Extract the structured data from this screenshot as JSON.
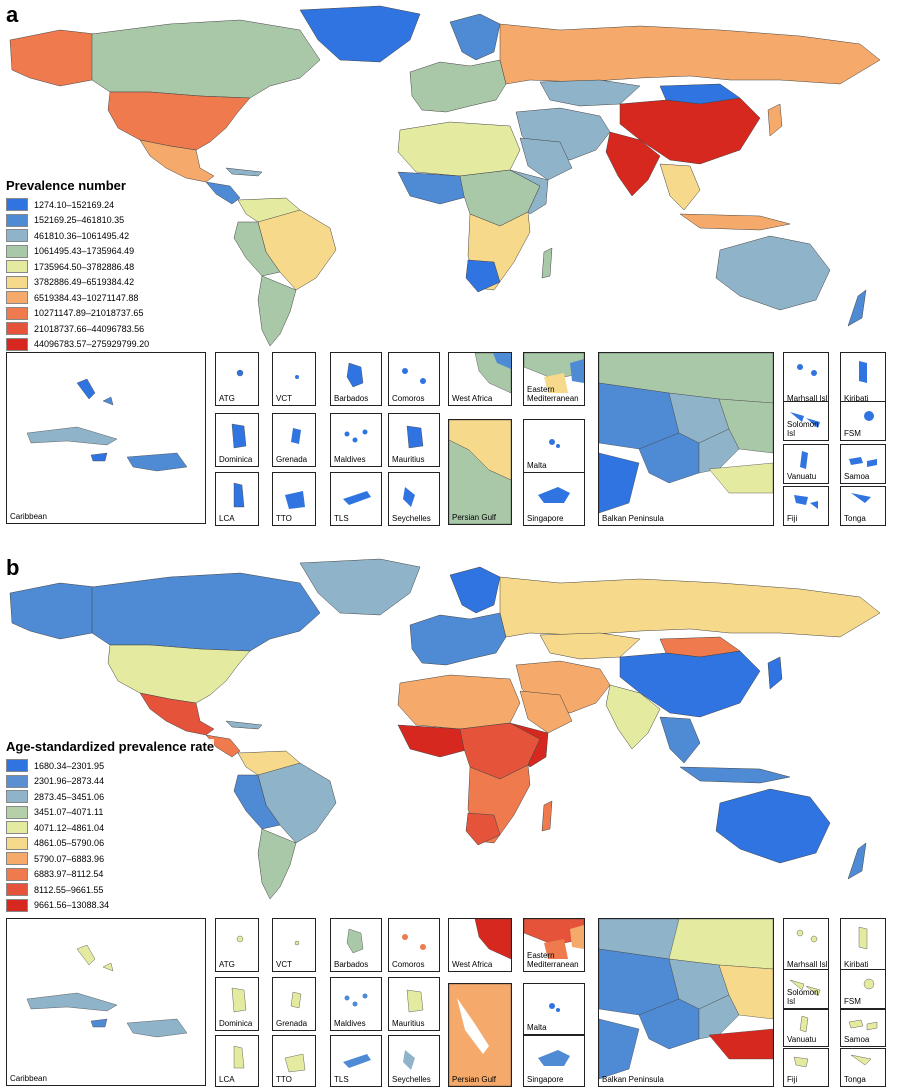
{
  "panel_a": {
    "letter": "a",
    "legend_title": "Prevalence number",
    "legend": [
      {
        "label": "1274.10–152169.24",
        "color": "#2f74e0"
      },
      {
        "label": "152169.25–461810.35",
        "color": "#4f8ad4"
      },
      {
        "label": "461810.36–1061495.42",
        "color": "#8fb3c9"
      },
      {
        "label": "1061495.43–1735964.49",
        "color": "#a9c8a8"
      },
      {
        "label": "1735964.50–3782886.48",
        "color": "#e4ea9f"
      },
      {
        "label": "3782886.49–6519384.42",
        "color": "#f6d98a"
      },
      {
        "label": "6519384.43–10271147.88",
        "color": "#f5a96a"
      },
      {
        "label": "10271147.89–21018737.65",
        "color": "#ee7a4e"
      },
      {
        "label": "21018737.66–44096783.56",
        "color": "#e5533a"
      },
      {
        "label": "44096783.57–275929799.20",
        "color": "#d7281f"
      }
    ],
    "insets": {
      "caribbean": "Caribbean",
      "atg": "ATG",
      "vct": "VCT",
      "barbados": "Barbados",
      "comoros": "Comoros",
      "dominica": "Dominica",
      "grenada": "Grenada",
      "maldives": "Maldives",
      "mauritius": "Mauritius",
      "lca": "LCA",
      "tto": "TTO",
      "tls": "TLS",
      "seychelles": "Seychelles",
      "west_africa": "West Africa",
      "eastern_med": "Eastern\nMediterranean",
      "persian_gulf": "Persian Gulf",
      "malta": "Malta",
      "singapore": "Singapore",
      "balkan": "Balkan Peninsula",
      "marshall": "Marhsall Isl",
      "kiribati": "Kiribati",
      "solomon": "Solomon Isl",
      "fsm": "FSM",
      "vanuatu": "Vanuatu",
      "samoa": "Samoa",
      "fiji": "Fiji",
      "tonga": "Tonga"
    }
  },
  "panel_b": {
    "letter": "b",
    "legend_title": "Age-standardized prevalence rate",
    "legend": [
      {
        "label": "1680.34–2301.95",
        "color": "#2f74e0"
      },
      {
        "label": "2301.96–2873.44",
        "color": "#5a8fd2"
      },
      {
        "label": "2873.45–3451.06",
        "color": "#8fb3c9"
      },
      {
        "label": "3451.07–4071.11",
        "color": "#b5cfa8"
      },
      {
        "label": "4071.12–4861.04",
        "color": "#e4ea9f"
      },
      {
        "label": "4861.05–5790.06",
        "color": "#f6d98a"
      },
      {
        "label": "5790.07–6883.96",
        "color": "#f5a96a"
      },
      {
        "label": "6883.97–8112.54",
        "color": "#ee7a4e"
      },
      {
        "label": "8112.55–9661.55",
        "color": "#e5533a"
      },
      {
        "label": "9661.56–13088.34",
        "color": "#d7281f"
      }
    ],
    "insets": {
      "caribbean": "Caribbean",
      "atg": "ATG",
      "vct": "VCT",
      "barbados": "Barbados",
      "comoros": "Comoros",
      "dominica": "Dominica",
      "grenada": "Grenada",
      "maldives": "Maldives",
      "mauritius": "Mauritius",
      "lca": "LCA",
      "tto": "TTO",
      "tls": "TLS",
      "seychelles": "Seychelles",
      "west_africa": "West Africa",
      "eastern_med": "Eastern\nMediterranean",
      "persian_gulf": "Persian Gulf",
      "malta": "Malta",
      "singapore": "Singapore",
      "balkan": "Balkan Peninsula",
      "marshall": "Marhsall Isl",
      "kiribati": "Kiribati",
      "solomon": "Solomon Isl",
      "fsm": "FSM",
      "vanuatu": "Vanuatu",
      "samoa": "Samoa",
      "fiji": "Fiji",
      "tonga": "Tonga"
    }
  },
  "colors": {
    "blue": "#2f74e0",
    "blue2": "#4f8ad4",
    "steel": "#8fb3c9",
    "sage": "#a9c8a8",
    "paleyellow": "#e4ea9f",
    "yellow": "#f6d98a",
    "orange": "#f5a96a",
    "orangered": "#ee7a4e",
    "red": "#e5533a",
    "darkred": "#d7281f"
  }
}
